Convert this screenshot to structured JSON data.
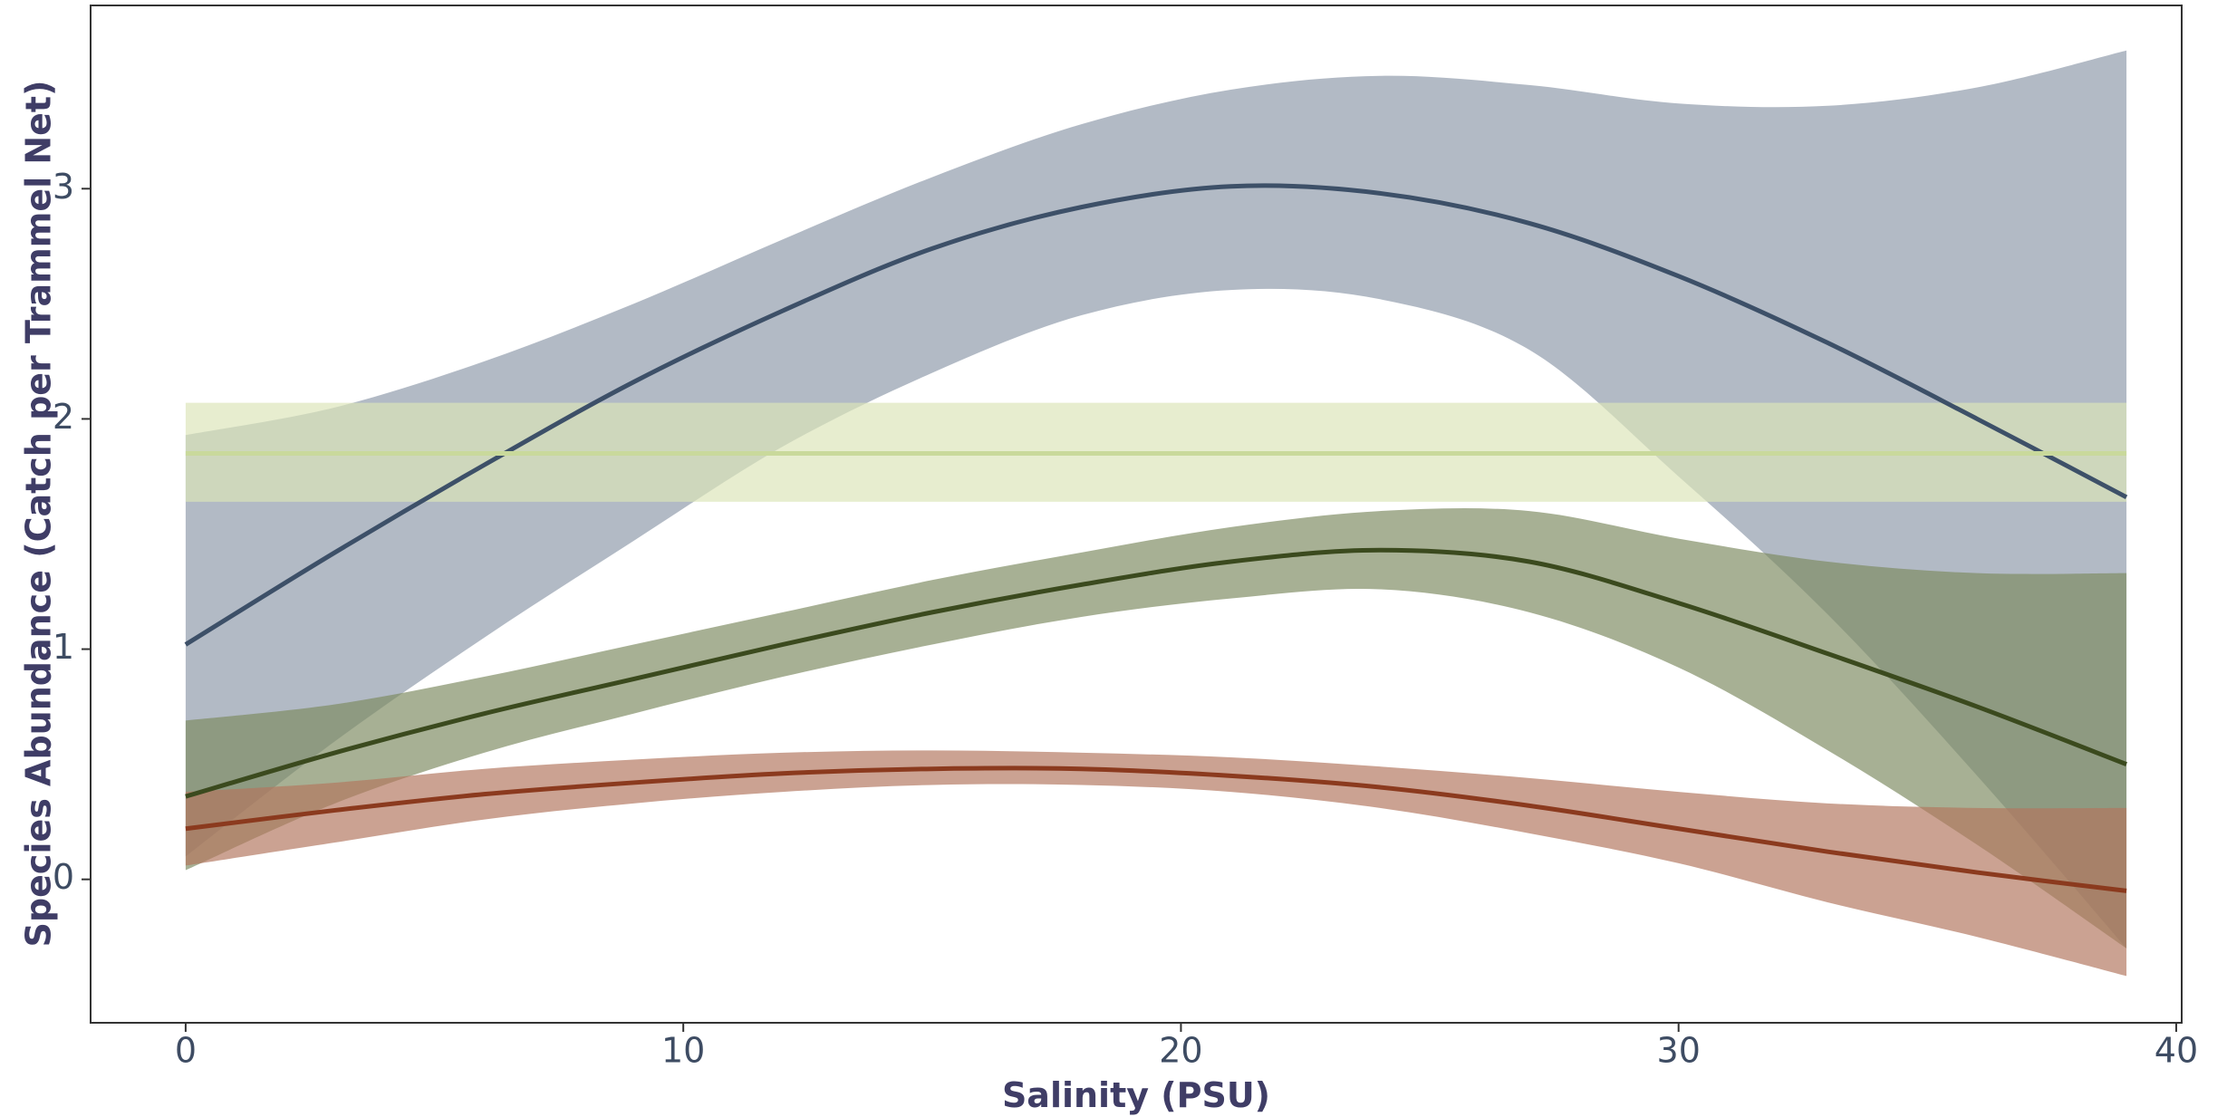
{
  "chart_data": {
    "type": "line",
    "x_label": "Salinity (PSU)",
    "y_label": "Species Abundance (Catch per Trammel Net)",
    "x": [
      0,
      3,
      6,
      9,
      12,
      15,
      18,
      21,
      24,
      27,
      30,
      33,
      36,
      39
    ],
    "xlim": [
      -1.91,
      40.11
    ],
    "ylim": [
      -0.623,
      3.796
    ],
    "xticks": [
      0,
      10,
      20,
      30,
      40
    ],
    "yticks": [
      0,
      1,
      2,
      3
    ],
    "series": [
      {
        "color": "#3d5068",
        "band_color": "#8e99aa",
        "values": [
          1.02,
          1.42,
          1.8,
          2.16,
          2.47,
          2.74,
          2.92,
          3.01,
          2.98,
          2.85,
          2.62,
          2.33,
          2.0,
          1.66
        ],
        "upper": [
          1.93,
          2.05,
          2.25,
          2.5,
          2.78,
          3.05,
          3.28,
          3.43,
          3.49,
          3.45,
          3.37,
          3.36,
          3.44,
          3.6
        ],
        "lower": [
          0.1,
          0.6,
          1.05,
          1.47,
          1.88,
          2.2,
          2.45,
          2.56,
          2.52,
          2.3,
          1.75,
          1.15,
          0.45,
          -0.3
        ]
      },
      {
        "color": "#c9d99b",
        "band_color": "#dce5b8",
        "values": [
          1.85,
          1.85,
          1.85,
          1.85,
          1.85,
          1.85,
          1.85,
          1.85,
          1.85,
          1.85,
          1.85,
          1.85,
          1.85,
          1.85
        ],
        "upper": [
          2.07,
          2.07,
          2.07,
          2.07,
          2.07,
          2.07,
          2.07,
          2.07,
          2.07,
          2.07,
          2.07,
          2.07,
          2.07,
          2.07
        ],
        "lower": [
          1.64,
          1.64,
          1.64,
          1.64,
          1.64,
          1.64,
          1.64,
          1.64,
          1.64,
          1.64,
          1.64,
          1.64,
          1.64,
          1.64
        ]
      },
      {
        "color": "#3b4a1e",
        "band_color": "#7d8b62",
        "values": [
          0.36,
          0.55,
          0.72,
          0.87,
          1.02,
          1.16,
          1.28,
          1.38,
          1.43,
          1.38,
          1.2,
          0.98,
          0.75,
          0.5
        ],
        "upper": [
          0.69,
          0.76,
          0.88,
          1.02,
          1.16,
          1.3,
          1.42,
          1.53,
          1.6,
          1.6,
          1.48,
          1.38,
          1.33,
          1.33
        ],
        "lower": [
          0.04,
          0.33,
          0.55,
          0.72,
          0.88,
          1.02,
          1.14,
          1.22,
          1.26,
          1.16,
          0.92,
          0.56,
          0.15,
          -0.3
        ]
      },
      {
        "color": "#8b3a1e",
        "band_color": "#b3765e",
        "values": [
          0.22,
          0.3,
          0.37,
          0.42,
          0.46,
          0.48,
          0.48,
          0.45,
          0.4,
          0.32,
          0.22,
          0.12,
          0.03,
          -0.05
        ],
        "upper": [
          0.38,
          0.42,
          0.48,
          0.52,
          0.55,
          0.56,
          0.55,
          0.53,
          0.49,
          0.44,
          0.38,
          0.33,
          0.31,
          0.31
        ],
        "lower": [
          0.06,
          0.16,
          0.26,
          0.33,
          0.38,
          0.41,
          0.41,
          0.38,
          0.31,
          0.2,
          0.07,
          -0.1,
          -0.25,
          -0.42
        ]
      }
    ]
  }
}
